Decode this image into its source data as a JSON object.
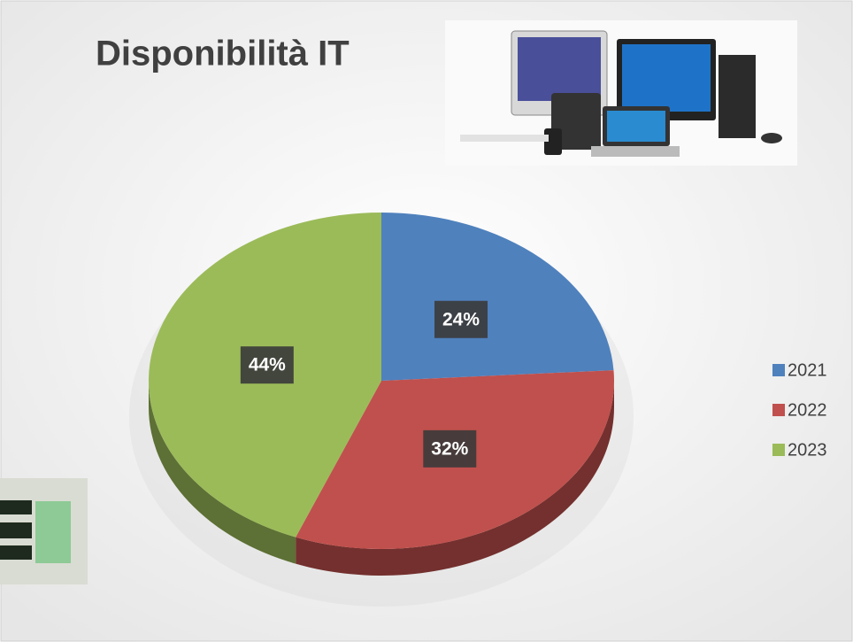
{
  "chart_data": {
    "type": "pie",
    "title": "Disponibilità IT",
    "categories": [
      "2021",
      "2022",
      "2023"
    ],
    "values": [
      24,
      32,
      44
    ],
    "value_labels": [
      "24%",
      "32%",
      "44%"
    ],
    "colors": [
      "#4f81bd",
      "#c0504d",
      "#9bbb59"
    ],
    "legend": "right"
  }
}
